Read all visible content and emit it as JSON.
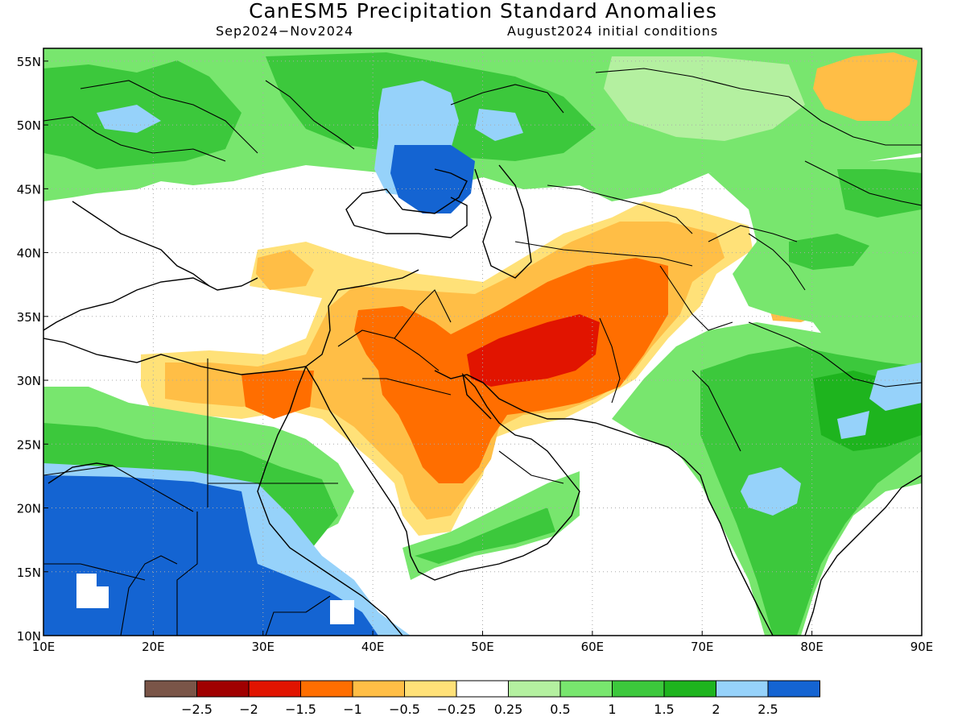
{
  "header": {
    "title": "CanESM5 Precipitation Standard Anomalies",
    "period": "Sep2024−Nov2024",
    "init": "August2024 initial conditions"
  },
  "map": {
    "lon_range": [
      10,
      90
    ],
    "lat_range": [
      10,
      56
    ],
    "lon_ticks": [
      {
        "value": 10,
        "label": "10E"
      },
      {
        "value": 20,
        "label": "20E"
      },
      {
        "value": 30,
        "label": "30E"
      },
      {
        "value": 40,
        "label": "40E"
      },
      {
        "value": 50,
        "label": "50E"
      },
      {
        "value": 60,
        "label": "60E"
      },
      {
        "value": 70,
        "label": "70E"
      },
      {
        "value": 80,
        "label": "80E"
      },
      {
        "value": 90,
        "label": "90E"
      }
    ],
    "lat_ticks": [
      {
        "value": 10,
        "label": "10N"
      },
      {
        "value": 15,
        "label": "15N"
      },
      {
        "value": 20,
        "label": "20N"
      },
      {
        "value": 25,
        "label": "25N"
      },
      {
        "value": 30,
        "label": "30N"
      },
      {
        "value": 35,
        "label": "35N"
      },
      {
        "value": 40,
        "label": "40N"
      },
      {
        "value": 45,
        "label": "45N"
      },
      {
        "value": 50,
        "label": "50N"
      },
      {
        "value": 55,
        "label": "55N"
      }
    ],
    "colors": {
      "white": "#ffffff",
      "lg1": "#b4f0a0",
      "lg2": "#78e66e",
      "g1": "#3cc83c",
      "g2": "#1eb41e",
      "lb": "#96d2fa",
      "db": "#1464d2",
      "y1": "#ffe178",
      "o1": "#ffbe46",
      "o2": "#ff6e00",
      "r1": "#e11400",
      "coast": "#000000"
    }
  },
  "legend": {
    "boxes": [
      "#7a5548",
      "#a00000",
      "#e11400",
      "#ff6e00",
      "#ffbe46",
      "#ffe178",
      "#ffffff",
      "#b4f0a0",
      "#78e66e",
      "#3cc83c",
      "#1eb41e",
      "#96d2fa",
      "#1464d2"
    ],
    "labels": [
      "−2.5",
      "−2",
      "−1.5",
      "−1",
      "−0.5",
      "−0.25",
      "0.25",
      "0.5",
      "1",
      "1.5",
      "2",
      "2.5"
    ]
  }
}
